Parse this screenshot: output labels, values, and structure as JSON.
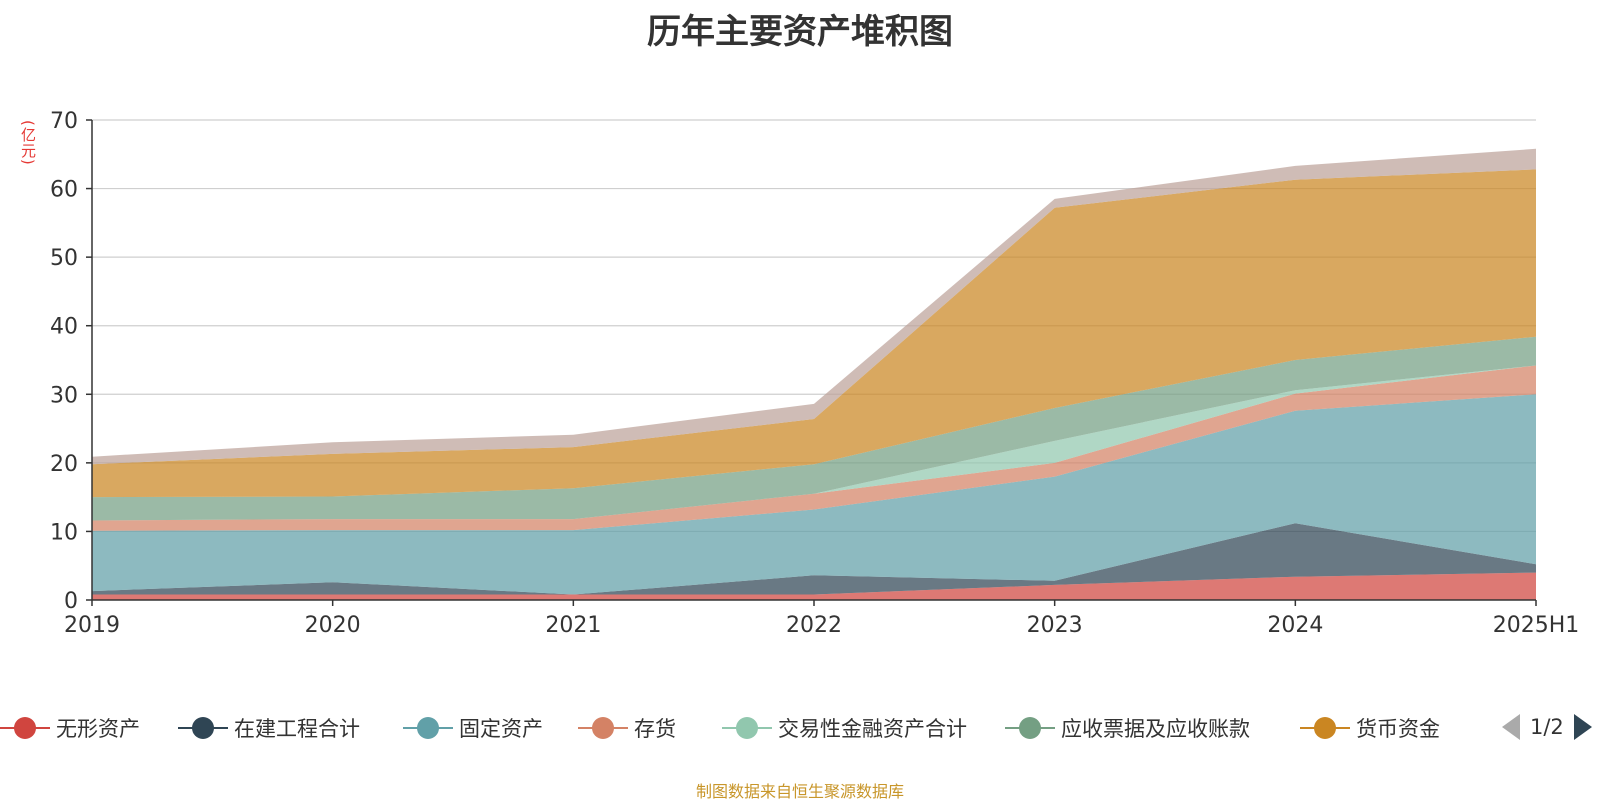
{
  "header": {
    "title": "历年主要资产堆积图",
    "unit": "(亿元)"
  },
  "chart_data": {
    "type": "area",
    "stacked": true,
    "categories": [
      "2019",
      "2020",
      "2021",
      "2022",
      "2023",
      "2024",
      "2025H1"
    ],
    "ylim": [
      0,
      70
    ],
    "yticks": [
      0,
      10,
      20,
      30,
      40,
      50,
      60,
      70
    ],
    "grid": true,
    "series": [
      {
        "name": "无形资产",
        "color": "#d0453f",
        "values": [
          0.8,
          0.8,
          0.8,
          0.8,
          2.2,
          3.4,
          4.0
        ]
      },
      {
        "name": "在建工程合计",
        "color": "#2f4554",
        "values": [
          0.5,
          1.8,
          0.0,
          2.8,
          0.6,
          7.8,
          1.2
        ]
      },
      {
        "name": "固定资产",
        "color": "#61a0a8",
        "values": [
          8.8,
          7.6,
          9.4,
          9.6,
          15.2,
          16.4,
          24.8
        ]
      },
      {
        "name": "存货",
        "color": "#d48265",
        "values": [
          1.5,
          1.6,
          1.6,
          2.3,
          2.0,
          2.5,
          4.2
        ]
      },
      {
        "name": "交易性金融资产合计",
        "color": "#91c7ae",
        "values": [
          0.0,
          0.0,
          0.0,
          0.0,
          3.2,
          0.5,
          0.0
        ]
      },
      {
        "name": "应收票据及应收账款",
        "color": "#749f83",
        "values": [
          3.4,
          3.3,
          4.5,
          4.3,
          4.8,
          4.4,
          4.2
        ]
      },
      {
        "name": "货币资金",
        "color": "#ca8622",
        "values": [
          4.8,
          6.2,
          6.0,
          6.6,
          29.2,
          26.3,
          24.4
        ]
      },
      {
        "name": "",
        "color": "#bda29a",
        "values": [
          1.1,
          1.7,
          1.8,
          2.2,
          1.3,
          2.0,
          3.0
        ]
      }
    ]
  },
  "legend": {
    "page_label": "1/2",
    "prev_icon": "triangle-left-icon",
    "next_icon": "triangle-right-icon"
  },
  "footer": {
    "source": "制图数据来自恒生聚源数据库"
  }
}
